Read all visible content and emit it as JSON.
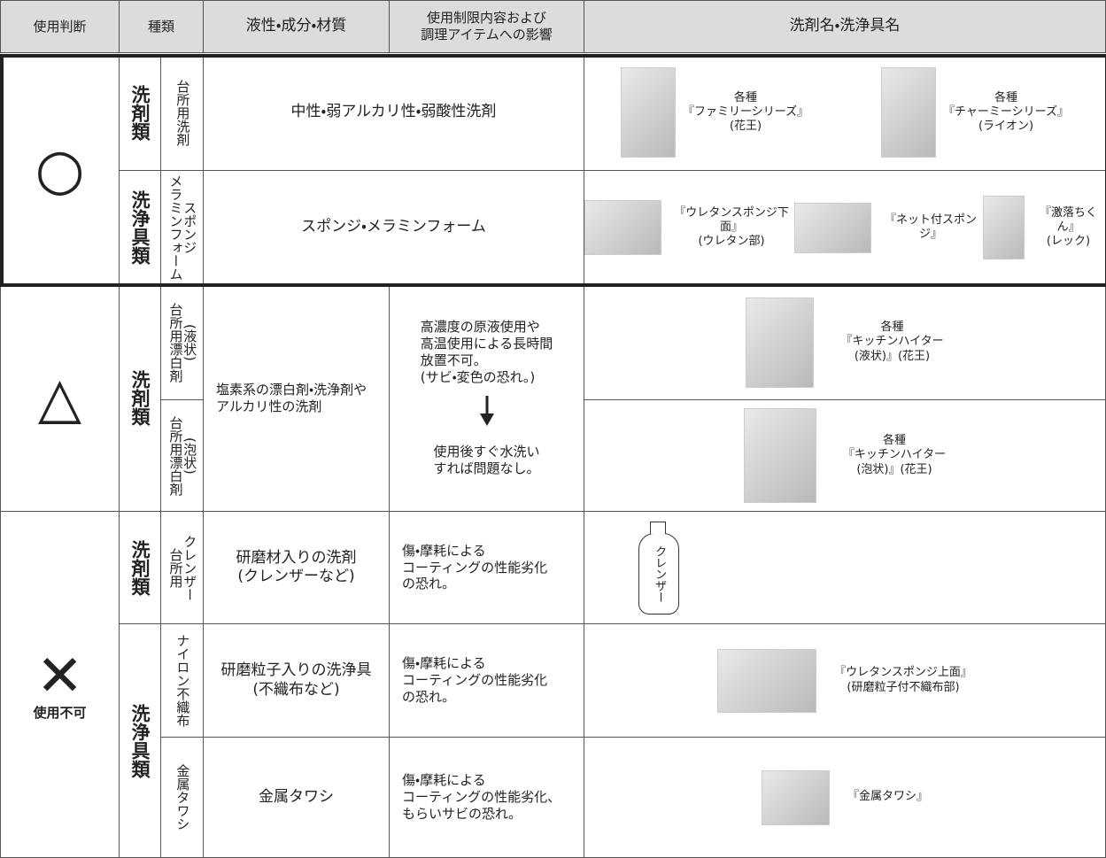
{
  "header": {
    "judgement": "使用判断",
    "type": "種類",
    "property": "液性・成分・材質",
    "restriction": [
      "使用制限内容および",
      "調理アイテムへの影響"
    ],
    "products": "洗剤名・洗浄具名"
  },
  "ok": {
    "symbol": "○",
    "detergent": {
      "category": "洗剤類",
      "subtype": [
        "台所用洗剤"
      ],
      "property": "中性・弱アルカリ性・弱酸性洗剤",
      "products": [
        [
          "各種",
          "『ファミリーシリーズ』",
          "(花王)"
        ],
        [
          "各種",
          "『チャーミーシリーズ』",
          "(ライオン)"
        ]
      ]
    },
    "tools": {
      "category": "洗浄具類",
      "subtype": [
        "スポンジ",
        "メラミンフォーム"
      ],
      "property": "スポンジ・メラミンフォーム",
      "products": [
        [
          "『ウレタンスポンジ下面』",
          "(ウレタン部)"
        ],
        [
          "『ネット付スポンジ』"
        ],
        [
          "『激落ちくん』",
          "(レック)"
        ]
      ]
    }
  },
  "caution": {
    "symbol": "△",
    "category": "洗剤類",
    "property": [
      "塩素系の漂白剤・洗浄剤や",
      "アルカリ性の洗剤"
    ],
    "restriction": [
      "高濃度の原液使用や",
      "高温使用による長時間",
      "放置不可。",
      "(サビ・変色の恐れ。)"
    ],
    "restriction_after": [
      "使用後すぐ水洗い",
      "すれば問題なし。"
    ],
    "items": [
      {
        "subtype": [
          "(液状)",
          "台所用漂白剤"
        ],
        "product": [
          "各種",
          "『キッチンハイター",
          "(液状)』(花王)"
        ]
      },
      {
        "subtype": [
          "(泡状)",
          "台所用漂白剤"
        ],
        "product": [
          "各種",
          "『キッチンハイター",
          "(泡状)』(花王)"
        ]
      }
    ]
  },
  "prohibited": {
    "symbol": "✕",
    "label": "使用不可",
    "tool_category": "洗浄具類",
    "items": [
      {
        "category": "洗剤類",
        "subtype": [
          "クレンザー",
          "台所用"
        ],
        "property": [
          "研磨材入りの洗剤",
          "(クレンザーなど)"
        ],
        "restriction": [
          "傷・摩耗による",
          "コーティングの性能劣化",
          "の恐れ。"
        ],
        "illustration": "クレンザー"
      },
      {
        "subtype": [
          "ナイロン不織布"
        ],
        "property": [
          "研磨粒子入りの洗浄具",
          "(不織布など)"
        ],
        "restriction": [
          "傷・摩耗による",
          "コーティングの性能劣化",
          "の恐れ。"
        ],
        "product": [
          "『ウレタンスポンジ上面』",
          "(研磨粒子付不織布部)"
        ]
      },
      {
        "subtype": [
          "金属タワシ"
        ],
        "property": [
          "金属タワシ"
        ],
        "restriction": [
          "傷・摩耗による",
          "コーティングの性能劣化、",
          "もらいサビの恐れ。"
        ],
        "product": [
          "『金属タワシ』"
        ]
      }
    ]
  }
}
